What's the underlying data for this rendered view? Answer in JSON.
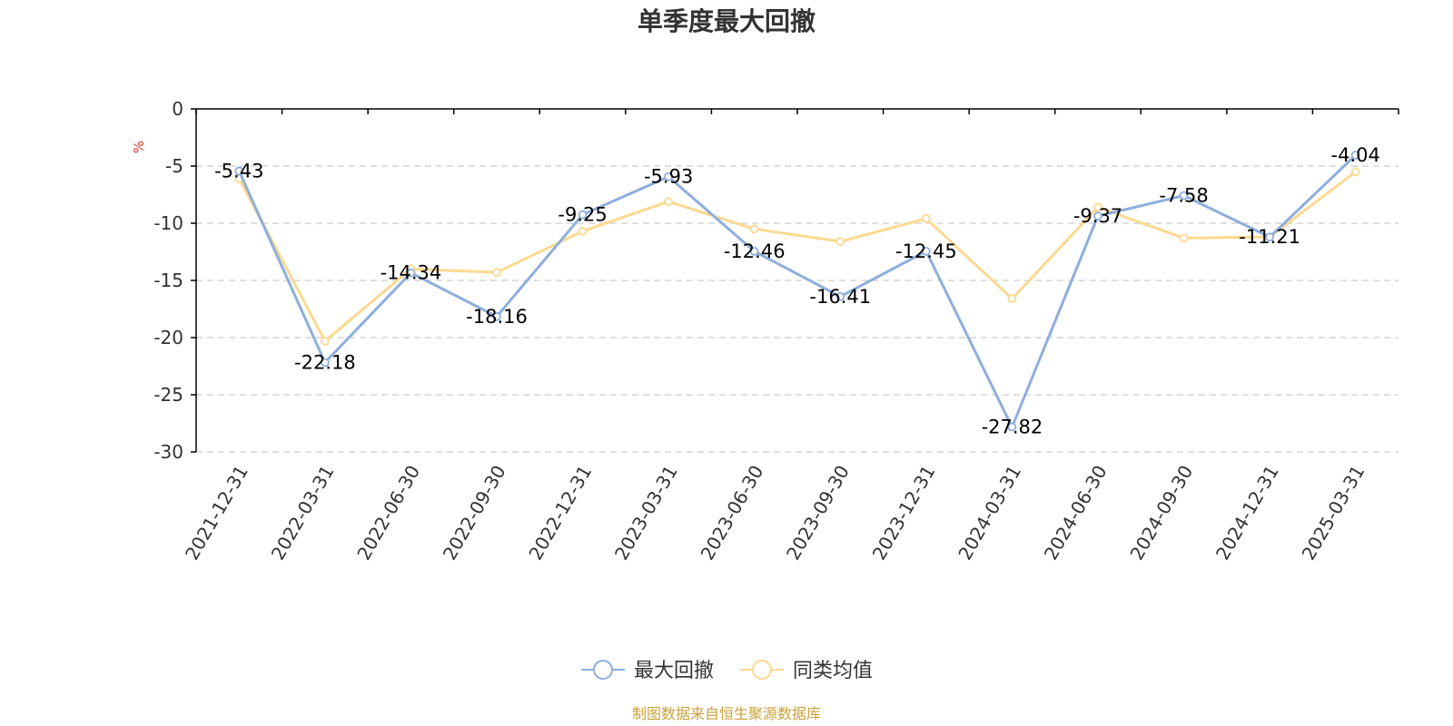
{
  "chart_data": {
    "type": "line",
    "title": "单季度最大回撤",
    "ylabel": "%",
    "xlabel": "",
    "ylim": [
      -30,
      0
    ],
    "yticks": [
      0,
      -5,
      -10,
      -15,
      -20,
      -25,
      -30
    ],
    "grid": true,
    "legend_position": "bottom",
    "categories": [
      "2021-12-31",
      "2022-03-31",
      "2022-06-30",
      "2022-09-30",
      "2022-12-31",
      "2023-03-31",
      "2023-06-30",
      "2023-09-30",
      "2023-12-31",
      "2024-03-31",
      "2024-06-30",
      "2024-09-30",
      "2024-12-31",
      "2025-03-31"
    ],
    "series": [
      {
        "name": "最大回撤",
        "color": "#8eaedc",
        "values": [
          -5.43,
          -22.18,
          -14.34,
          -18.16,
          -9.25,
          -5.93,
          -12.46,
          -16.41,
          -12.45,
          -27.82,
          -9.37,
          -7.58,
          -11.21,
          -4.04
        ],
        "labels": [
          "-5.43",
          "-22.18",
          "-14.34",
          "-18.16",
          "-9.25",
          "-5.93",
          "-12.46",
          "-16.41",
          "-12.45",
          "-27.82",
          "-9.37",
          "-7.58",
          "-11.21",
          "-4.04"
        ]
      },
      {
        "name": "同类均值",
        "color": "#fbd98f",
        "values": [
          -6.1,
          -20.3,
          -14.0,
          -14.3,
          -10.7,
          -8.1,
          -10.5,
          -11.6,
          -9.6,
          -16.6,
          -8.6,
          -11.3,
          -11.2,
          -5.5
        ]
      }
    ]
  },
  "source": "制图数据来自恒生聚源数据库"
}
